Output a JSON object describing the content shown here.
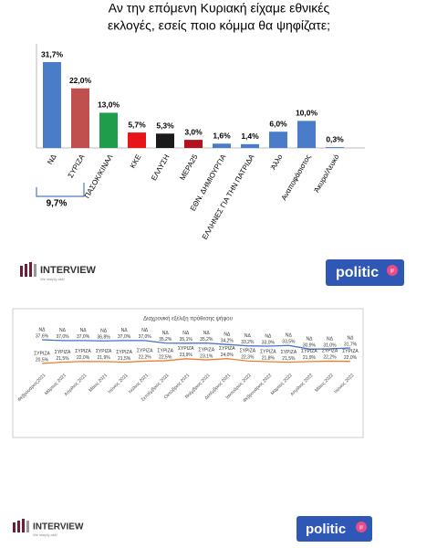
{
  "chart_data": [
    {
      "type": "bar",
      "title": [
        "Αν την επόμενη Κυριακή είχαμε εθνικές",
        "εκλογές, εσείς ποιο κόμμα θα ψηφίζατε;"
      ],
      "categories": [
        "ΝΔ",
        "ΣΥΡΙΖΑ",
        "ΠΑΣΟΚ/ΚΙΝΑΛ",
        "ΚΚΕ",
        "ΕΛΛΥΣΗ",
        "ΜΕΡΑ25",
        "ΕΘΝ. ΔΗΜΙΟΥΡΓΙΑ",
        "ΕΛΛΗΝΕΣ ΓΙΑ ΤΗΝ ΠΑΤΡΙΔΑ",
        "Άλλο",
        "Αναποφάσιστος",
        "Άκυρο/Λευκό"
      ],
      "values": [
        31.7,
        22.0,
        13.0,
        5.7,
        5.3,
        3.0,
        1.6,
        1.4,
        6.0,
        10.0,
        0.3
      ],
      "value_labels": [
        "31,7%",
        "22,0%",
        "13,0%",
        "5,7%",
        "5,3%",
        "3,0%",
        "1,6%",
        "1,4%",
        "6,0%",
        "10,0%",
        "0,3%"
      ],
      "colors": [
        "#4a7cc7",
        "#c0504d",
        "#1e9e4a",
        "#e8141b",
        "#1a1a1a",
        "#b3121d",
        "#4a7cc7",
        "#4a7cc7",
        "#4a7cc7",
        "#4a7cc7",
        "#4a7cc7"
      ],
      "annotation": "9,7%"
    },
    {
      "type": "line",
      "title": "Διαχρονική εξέλιξη πρόθεσης ψήφου",
      "categories": [
        "Φεβρουάριος2021",
        "Μάρτιος 2021",
        "Απρίλιος 2021",
        "Μάιος 2021",
        "Ιούνιος 2021",
        "Ιούλιος 2021",
        "Σεπτέμβριος 2021",
        "Οκτώβριος 2021",
        "Νοέμβριος 2021",
        "Δεκέμβριος 2021",
        "Ιανουάριος 2022",
        "Φεβρουάριος 2022",
        "Μάρτιος 2022",
        "Απρίλιος 2022",
        "Μάιος 2022",
        "Ιούνιος 2022"
      ],
      "series": [
        {
          "name": "ΝΔ",
          "color": "#4472c4",
          "values": [
            37.6,
            37.0,
            37.0,
            36.8,
            37.0,
            37.0,
            35.2,
            35.1,
            35.2,
            34.2,
            33.2,
            33.0,
            33.5,
            30.9,
            31.0,
            31.7
          ],
          "value_labels": [
            "37,6%",
            "37,0%",
            "37,0%",
            "36,8%",
            "37,0%",
            "37,0%",
            "35,2%",
            "35,1%",
            "35,2%",
            "34,2%",
            "33,2%",
            "33,0%",
            "33,5%",
            "30,9%",
            "31,0%",
            "31,7%"
          ]
        },
        {
          "name": "ΣΥΡΙΖΑ",
          "color": "#ed7d31",
          "values": [
            20.5,
            21.5,
            22.0,
            21.9,
            21.5,
            22.2,
            22.5,
            23.9,
            23.1,
            24.0,
            22.3,
            21.8,
            21.5,
            21.9,
            22.2,
            22.0
          ],
          "value_labels": [
            "20,5%",
            "21,5%",
            "22,0%",
            "21,9%",
            "21,5%",
            "22,2%",
            "22,5%",
            "23,9%",
            "23,1%",
            "24,0%",
            "22,3%",
            "21,8%",
            "21,5%",
            "21,9%",
            "22,2%",
            "22,0%"
          ]
        }
      ]
    }
  ],
  "logos": {
    "interview": "INTERVIEW",
    "tagline": "We simply ask!",
    "politic": "politic",
    "politic_suffix": "gr"
  }
}
